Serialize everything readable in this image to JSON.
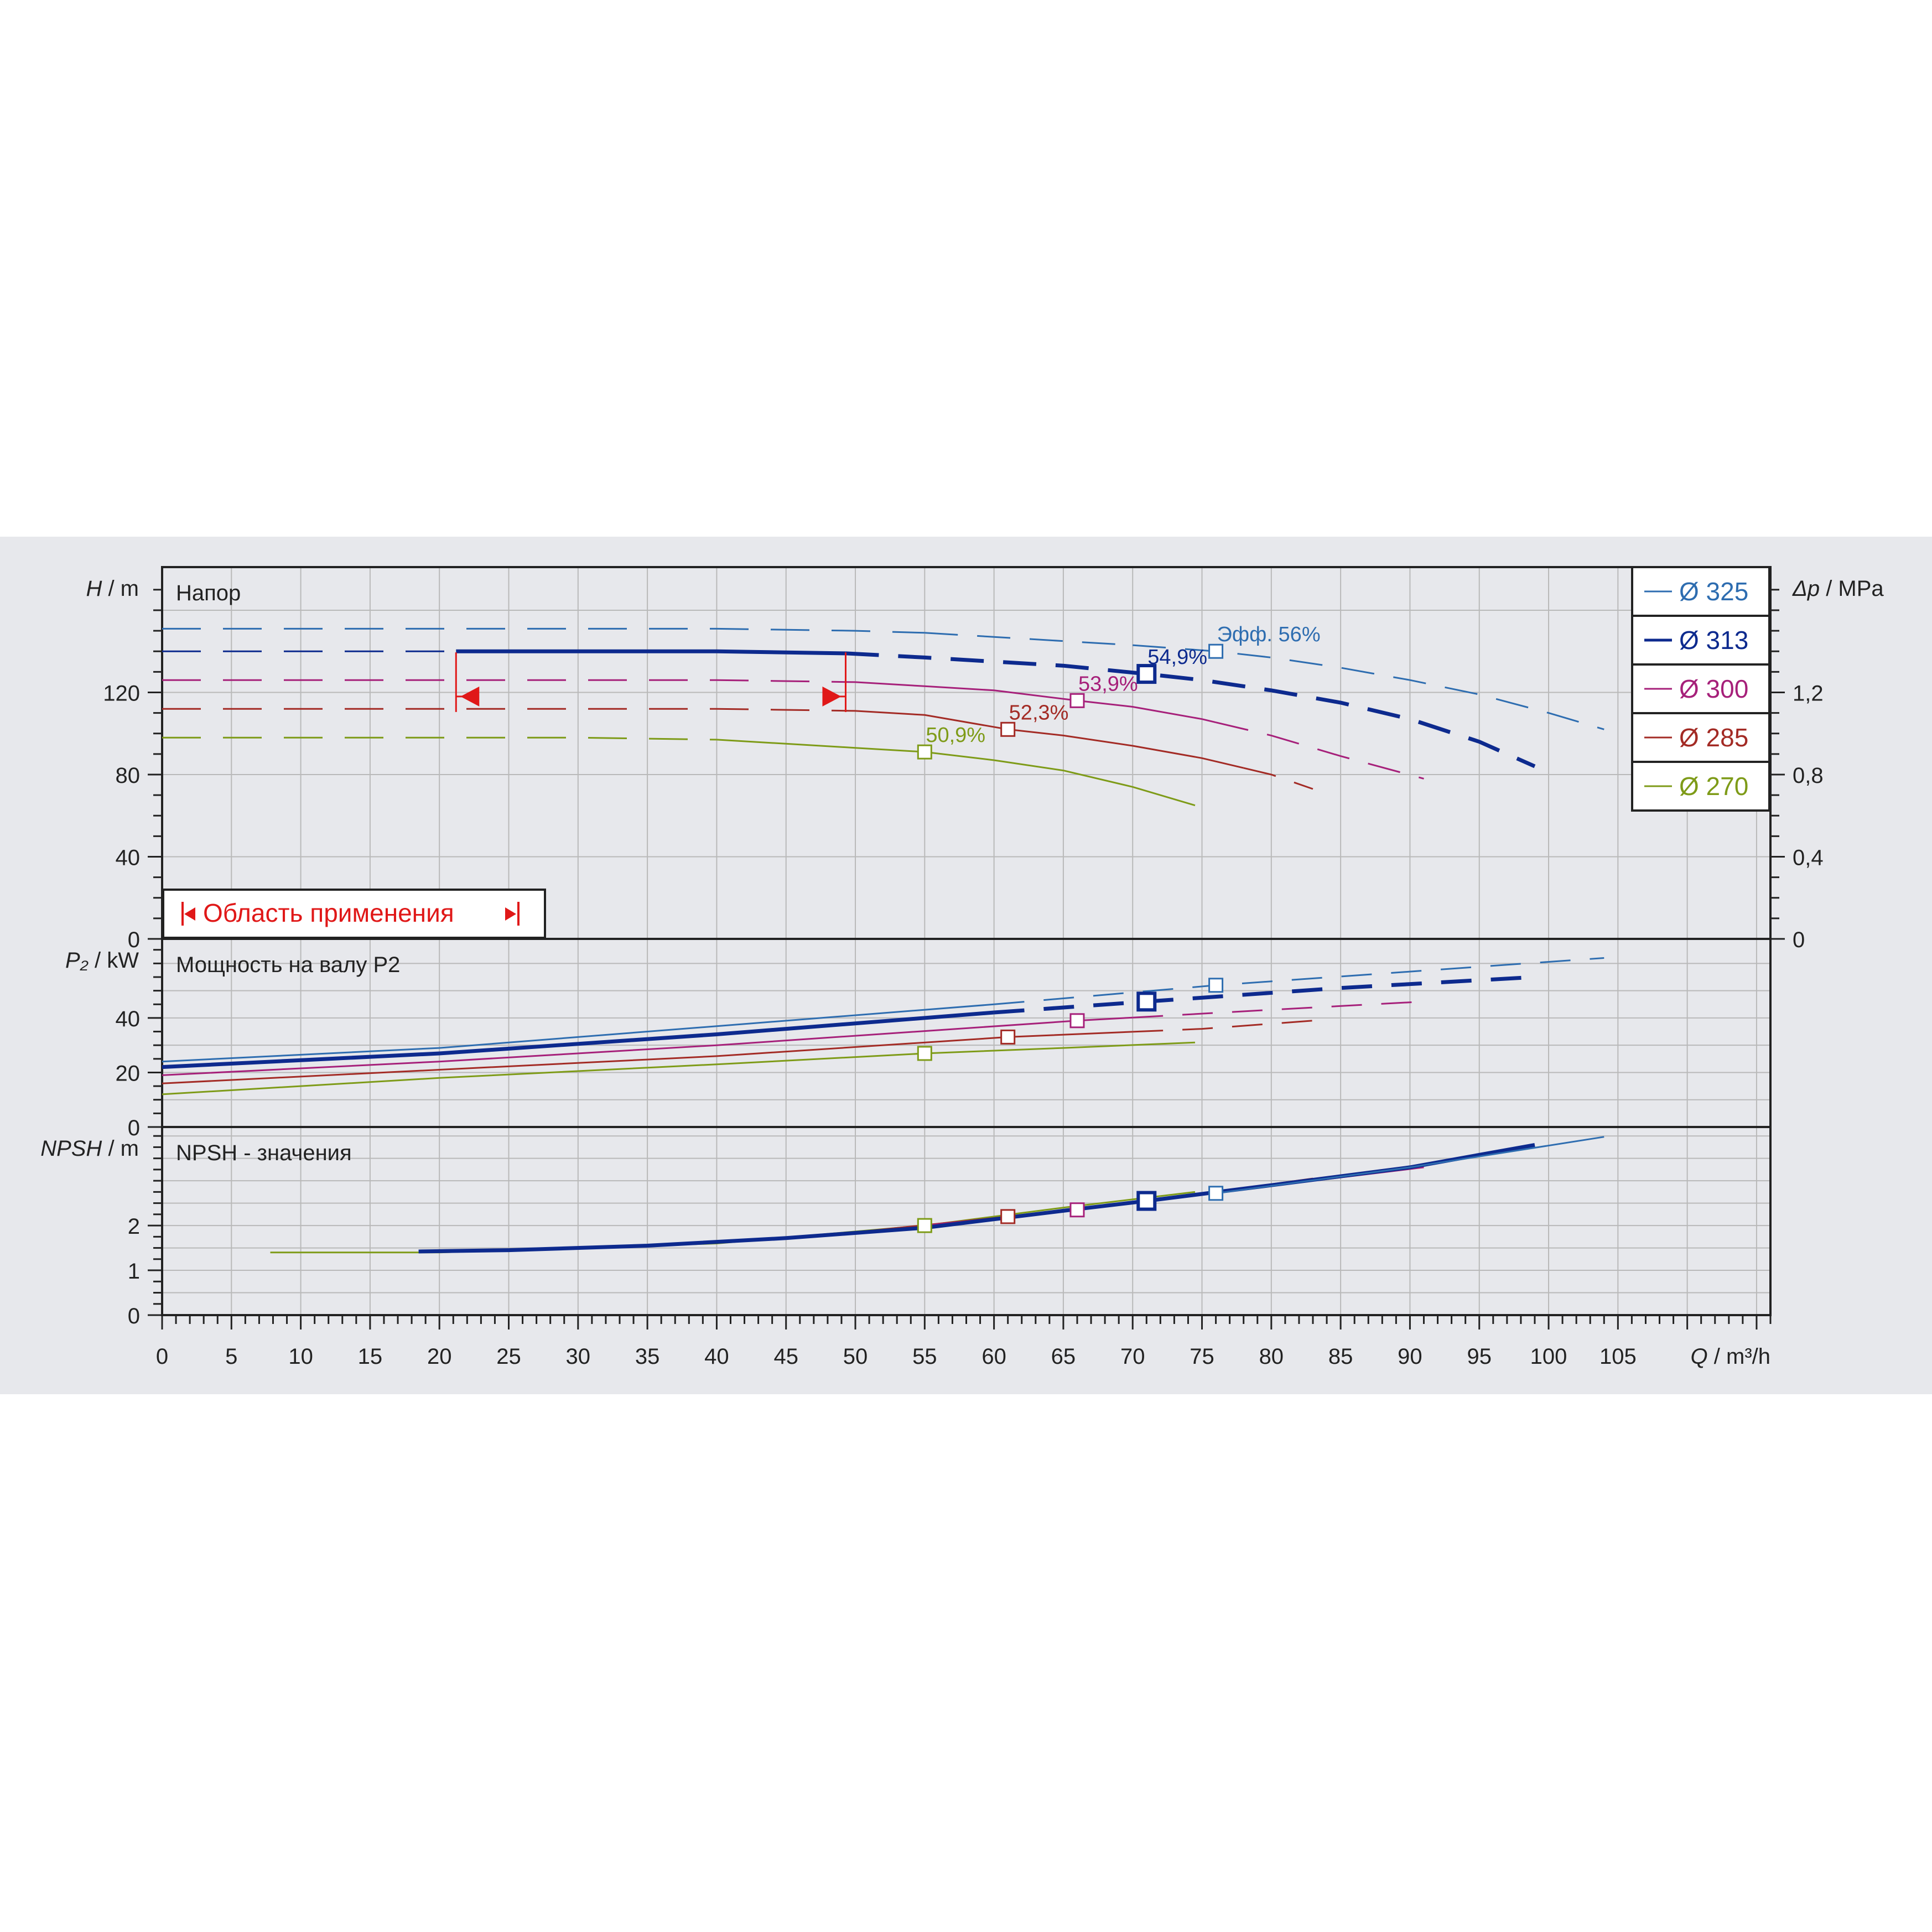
{
  "colors": {
    "band": "#e7e8ec",
    "grid": "#b9b9b9",
    "frame": "#222222",
    "ann": "#e01818",
    "d325": "#2e6db0",
    "d313": "#0d2a8e",
    "d300": "#a6207a",
    "d285": "#a32b25",
    "d270": "#7e9b18"
  },
  "legend": [
    {
      "key": "d325",
      "label": "Ø 325"
    },
    {
      "key": "d313",
      "label": "Ø 313"
    },
    {
      "key": "d300",
      "label": "Ø 300"
    },
    {
      "key": "d285",
      "label": "Ø 285"
    },
    {
      "key": "d270",
      "label": "Ø 270"
    }
  ],
  "panels": {
    "head": {
      "ylabel_sym": "H",
      "ylabel_unit": " / m",
      "title": "Напор",
      "ticks": [
        "0",
        "40",
        "80",
        "120"
      ],
      "right_sym": "Δp",
      "right_unit": " / MPa",
      "right_ticks": [
        "0",
        "0,4",
        "0,8",
        "1,2"
      ]
    },
    "power": {
      "ylabel_sym": "P₂",
      "ylabel_unit": " / kW",
      "title": "Мощность на валу P2",
      "ticks": [
        "0",
        "20",
        "40"
      ]
    },
    "npsh": {
      "ylabel_sym": "NPSH",
      "ylabel_unit": " / m",
      "title": "NPSH - значения",
      "ticks": [
        "0",
        "1",
        "2"
      ]
    }
  },
  "xaxis": {
    "sym": "Q",
    "unit": " / m³/h",
    "ticks": [
      "0",
      "5",
      "10",
      "15",
      "20",
      "25",
      "30",
      "35",
      "40",
      "45",
      "50",
      "55",
      "60",
      "65",
      "70",
      "75",
      "80",
      "85",
      "90",
      "95",
      "100",
      "105"
    ]
  },
  "application_area": {
    "label": "Область применения",
    "q_min": 21.2,
    "q_max": 49.3
  },
  "efficiency_prefix": "Эфф.",
  "chart_data": [
    {
      "type": "line",
      "title": "Напор",
      "xlabel": "Q / m³/h",
      "ylabel": "H / m",
      "y2label": "Δp / MPa",
      "xlim": [
        0,
        116
      ],
      "ylim": [
        0,
        181
      ],
      "y2lim": [
        0,
        1.81
      ],
      "series": [
        {
          "name": "Ø 325",
          "key": "d325",
          "x": [
            0,
            10,
            20,
            30,
            40,
            50,
            55,
            60,
            65,
            70,
            76,
            80,
            85,
            90,
            95,
            100,
            104
          ],
          "y": [
            151,
            151,
            151,
            151,
            151,
            150,
            149,
            147,
            145,
            143,
            140,
            137,
            132,
            126,
            119,
            110,
            102
          ],
          "eff_label": "56%",
          "bep": [
            76,
            140
          ]
        },
        {
          "name": "Ø 313",
          "key": "d313",
          "x": [
            0,
            10,
            20,
            30,
            40,
            49.3,
            55,
            60,
            65,
            71,
            75,
            80,
            85,
            90,
            95,
            99
          ],
          "y": [
            140,
            140,
            140,
            140,
            140,
            139,
            137,
            135,
            133,
            129,
            126,
            121,
            115,
            107,
            96,
            84
          ],
          "eff_label": "54,9%",
          "bep": [
            71,
            129
          ]
        },
        {
          "name": "Ø 300",
          "key": "d300",
          "x": [
            0,
            10,
            20,
            30,
            40,
            50,
            55,
            60,
            66,
            70,
            75,
            80,
            85,
            91
          ],
          "y": [
            126,
            126,
            126,
            126,
            126,
            125,
            123,
            121,
            116,
            113,
            107,
            99,
            89,
            78
          ],
          "eff_label": "53,9%",
          "bep": [
            66,
            116
          ]
        },
        {
          "name": "Ø 285",
          "key": "d285",
          "x": [
            0,
            10,
            20,
            30,
            40,
            50,
            55,
            61,
            65,
            70,
            75,
            80,
            83
          ],
          "y": [
            112,
            112,
            112,
            112,
            112,
            111,
            109,
            102,
            99,
            94,
            88,
            80,
            73
          ],
          "eff_label": "52,3%",
          "bep": [
            61,
            102
          ]
        },
        {
          "name": "Ø 270",
          "key": "d270",
          "x": [
            0,
            10,
            20,
            30,
            40,
            45,
            50,
            55,
            60,
            65,
            70,
            74.5
          ],
          "y": [
            98,
            98,
            98,
            98,
            97,
            95,
            93,
            91,
            87,
            82,
            74,
            65
          ],
          "eff_label": "50,9%",
          "bep": [
            55,
            91
          ]
        }
      ]
    },
    {
      "type": "line",
      "title": "Мощность на валу P2",
      "xlabel": "Q / m³/h",
      "ylabel": "P₂ / kW",
      "xlim": [
        0,
        116
      ],
      "ylim": [
        0,
        69
      ],
      "series": [
        {
          "name": "Ø 325",
          "key": "d325",
          "x": [
            0,
            20,
            40,
            60,
            76,
            90,
            104
          ],
          "y": [
            24,
            29,
            37,
            45,
            52,
            57,
            62
          ],
          "bep": [
            76,
            52
          ]
        },
        {
          "name": "Ø 313",
          "key": "d313",
          "x": [
            0,
            20,
            40,
            60,
            71,
            85,
            99
          ],
          "y": [
            22,
            27,
            34,
            42,
            46,
            51,
            55
          ],
          "bep": [
            71,
            46
          ]
        },
        {
          "name": "Ø 300",
          "key": "d300",
          "x": [
            0,
            20,
            40,
            66,
            80,
            91
          ],
          "y": [
            19,
            24,
            30,
            39,
            43,
            46
          ],
          "bep": [
            66,
            39
          ]
        },
        {
          "name": "Ø 285",
          "key": "d285",
          "x": [
            0,
            20,
            40,
            61,
            75,
            83
          ],
          "y": [
            16,
            21,
            26,
            33,
            36,
            39
          ],
          "bep": [
            61,
            33
          ]
        },
        {
          "name": "Ø 270",
          "key": "d270",
          "x": [
            0,
            20,
            40,
            55,
            65,
            74.5
          ],
          "y": [
            12,
            18,
            23,
            27,
            29,
            31
          ],
          "bep": [
            55,
            27
          ]
        }
      ]
    },
    {
      "type": "line",
      "title": "NPSH - значения",
      "xlabel": "Q / m³/h",
      "ylabel": "NPSH / m",
      "xlim": [
        0,
        116
      ],
      "ylim": [
        0,
        4.2
      ],
      "series": [
        {
          "name": "Ø 270",
          "key": "d270",
          "x": [
            7.8,
            20,
            40,
            55,
            65,
            74.5
          ],
          "y": [
            1.4,
            1.4,
            1.6,
            2.0,
            2.4,
            2.75
          ],
          "bep": [
            55,
            2.0
          ]
        },
        {
          "name": "Ø 285",
          "key": "d285",
          "x": [
            50,
            61,
            70,
            83
          ],
          "y": [
            1.85,
            2.2,
            2.5,
            3.05
          ],
          "bep": [
            61,
            2.2
          ]
        },
        {
          "name": "Ø 300",
          "key": "d300",
          "x": [
            55,
            66,
            75,
            91
          ],
          "y": [
            2.0,
            2.35,
            2.7,
            3.3
          ],
          "bep": [
            66,
            2.35
          ]
        },
        {
          "name": "Ø 313",
          "key": "d313",
          "x": [
            18.5,
            25,
            35,
            45,
            55,
            65,
            71,
            80,
            90,
            99
          ],
          "y": [
            1.42,
            1.45,
            1.55,
            1.72,
            1.95,
            2.33,
            2.55,
            2.9,
            3.3,
            3.8
          ],
          "bep": [
            71,
            2.55
          ]
        },
        {
          "name": "Ø 325",
          "key": "d325",
          "x": [
            76,
            90,
            104
          ],
          "y": [
            2.72,
            3.3,
            3.98
          ],
          "bep": [
            76,
            2.72
          ]
        }
      ]
    }
  ]
}
